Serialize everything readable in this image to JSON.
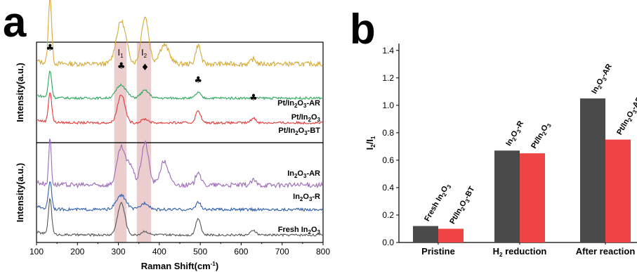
{
  "figure": {
    "panel_a_letter": "a",
    "panel_b_letter": "b"
  },
  "chart_data": [
    {
      "type": "line",
      "panel": "a",
      "xlabel": "Raman Shift(cm",
      "xlabel_sup": "-1",
      "xlabel_close": ")",
      "ylabel_top": "Intensity(a.u.)",
      "ylabel_bottom": "Intensity(a.u.)",
      "xlim": [
        100,
        800
      ],
      "xticks": [
        "100",
        "200",
        "300",
        "400",
        "500",
        "600",
        "700",
        "800"
      ],
      "bands": [
        {
          "label": "I",
          "sub": "1",
          "from": 290,
          "to": 320,
          "color": "#e8c4c6"
        },
        {
          "label": "I",
          "sub": "2",
          "from": 345,
          "to": 380,
          "color": "#e8c4c6"
        }
      ],
      "markers": [
        {
          "symbol": "♣",
          "x": 133
        },
        {
          "symbol": "♣",
          "x": 307
        },
        {
          "symbol": "♦",
          "x": 365
        },
        {
          "symbol": "♣",
          "x": 495
        },
        {
          "symbol": "♣",
          "x": 630
        }
      ],
      "series": [
        {
          "name": "Pt/In",
          "sub": "2",
          "mid": "O",
          "sub2": "3",
          "tail": "-AR",
          "subplot": "top",
          "color": "#d4a937",
          "offset": 0.8,
          "peaks": [
            [
              133,
              0.7,
              4
            ],
            [
              307,
              0.45,
              12
            ],
            [
              365,
              0.5,
              9
            ],
            [
              412,
              0.2,
              12
            ],
            [
              495,
              0.2,
              6
            ],
            [
              630,
              0.05,
              6
            ]
          ],
          "noise": 0.025
        },
        {
          "name": "Pt/In",
          "sub": "2",
          "mid": "O",
          "sub2": "3",
          "tail": "",
          "subplot": "top",
          "color": "#2ca85c",
          "offset": 0.44,
          "peaks": [
            [
              133,
              0.28,
              4
            ],
            [
              307,
              0.14,
              12
            ],
            [
              365,
              0.08,
              10
            ],
            [
              495,
              0.06,
              6
            ]
          ],
          "noise": 0.012
        },
        {
          "name": "Pt/In",
          "sub": "2",
          "mid": "O",
          "sub2": "3",
          "tail": "-BT",
          "subplot": "top",
          "color": "#e03a3a",
          "offset": 0.18,
          "peaks": [
            [
              133,
              0.32,
              4
            ],
            [
              307,
              0.3,
              9
            ],
            [
              365,
              0.04,
              8
            ],
            [
              495,
              0.13,
              6
            ],
            [
              630,
              0.05,
              6
            ]
          ],
          "noise": 0.012
        },
        {
          "name": "In",
          "sub": "2",
          "mid": "O",
          "sub2": "3",
          "tail": "-AR",
          "subplot": "bottom",
          "color": "#9b6ab9",
          "offset": 0.58,
          "peaks": [
            [
              133,
              0.5,
              3
            ],
            [
              307,
              0.4,
              10
            ],
            [
              330,
              0.2,
              8
            ],
            [
              365,
              0.45,
              9
            ],
            [
              412,
              0.25,
              10
            ],
            [
              495,
              0.15,
              6
            ],
            [
              630,
              0.05,
              6
            ]
          ],
          "noise": 0.025
        },
        {
          "name": "In",
          "sub": "2",
          "mid": "O",
          "sub2": "3",
          "tail": "-R",
          "subplot": "bottom",
          "color": "#2f5faf",
          "offset": 0.32,
          "peaks": [
            [
              133,
              0.3,
              4
            ],
            [
              307,
              0.15,
              12
            ],
            [
              365,
              0.07,
              10
            ],
            [
              495,
              0.08,
              6
            ]
          ],
          "noise": 0.015
        },
        {
          "name": "Fresh In",
          "sub": "2",
          "mid": "O",
          "sub2": "3",
          "tail": "",
          "subplot": "bottom",
          "color": "#555555",
          "offset": 0.05,
          "peaks": [
            [
              133,
              0.38,
              4
            ],
            [
              307,
              0.34,
              9
            ],
            [
              365,
              0.04,
              8
            ],
            [
              495,
              0.18,
              6
            ],
            [
              630,
              0.05,
              6
            ]
          ],
          "noise": 0.012
        }
      ]
    },
    {
      "type": "bar",
      "panel": "b",
      "ylabel_main": "I",
      "ylabel_sub1": "2",
      "ylabel_mid": "/I",
      "ylabel_sub2": "1",
      "ylim": [
        0,
        1.45
      ],
      "yticks": [
        "0.0",
        "0.2",
        "0.4",
        "0.6",
        "0.8",
        "1.0",
        "1.2",
        "1.4"
      ],
      "categories": [
        {
          "label": "Pristine",
          "sub": "",
          "tail": ""
        },
        {
          "label": "H",
          "sub": "2",
          "tail": " reduction"
        },
        {
          "label": "After reaction",
          "sub": "",
          "tail": ""
        }
      ],
      "bars": [
        {
          "category": 0,
          "series": 0,
          "value": 0.12,
          "color": "#4a4a4a",
          "lbl": [
            [
              "Fresh In",
              ""
            ],
            [
              "2",
              "sub"
            ],
            [
              "O",
              ""
            ],
            [
              "3",
              "sub"
            ]
          ]
        },
        {
          "category": 0,
          "series": 1,
          "value": 0.1,
          "color": "#ee4444",
          "lbl": [
            [
              "Pt/In",
              ""
            ],
            [
              "2",
              "sub"
            ],
            [
              "O",
              ""
            ],
            [
              "3",
              "sub"
            ],
            [
              "-BT",
              ""
            ]
          ]
        },
        {
          "category": 1,
          "series": 0,
          "value": 0.67,
          "color": "#4a4a4a",
          "lbl": [
            [
              "In",
              ""
            ],
            [
              "2",
              "sub"
            ],
            [
              "O",
              ""
            ],
            [
              "3",
              "sub"
            ],
            [
              "-R",
              ""
            ]
          ]
        },
        {
          "category": 1,
          "series": 1,
          "value": 0.65,
          "color": "#ee4444",
          "lbl": [
            [
              "Pt/In",
              ""
            ],
            [
              "2",
              "sub"
            ],
            [
              "O",
              ""
            ],
            [
              "3",
              "sub"
            ]
          ]
        },
        {
          "category": 2,
          "series": 0,
          "value": 1.05,
          "color": "#4a4a4a",
          "lbl": [
            [
              "In",
              ""
            ],
            [
              "2",
              "sub"
            ],
            [
              "O",
              ""
            ],
            [
              "3",
              "sub"
            ],
            [
              "-AR",
              ""
            ]
          ]
        },
        {
          "category": 2,
          "series": 1,
          "value": 0.75,
          "color": "#ee4444",
          "lbl": [
            [
              "Pt/In",
              ""
            ],
            [
              "2",
              "sub"
            ],
            [
              "O",
              ""
            ],
            [
              "3",
              "sub"
            ],
            [
              "-AR",
              ""
            ]
          ]
        }
      ]
    }
  ]
}
